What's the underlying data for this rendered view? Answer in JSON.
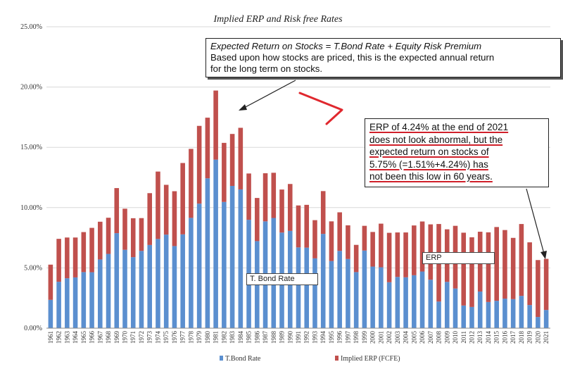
{
  "chart_data": {
    "type": "bar",
    "stacked": true,
    "title": "Implied ERP and Risk free Rates",
    "xlabel": "",
    "ylabel": "",
    "ylim": [
      0,
      25
    ],
    "y_ticks": [
      "0.00%",
      "5.00%",
      "10.00%",
      "15.00%",
      "20.00%",
      "25.00%"
    ],
    "grid": true,
    "legend_position": "bottom",
    "categories": [
      "1961",
      "1962",
      "1963",
      "1964",
      "1965",
      "1966",
      "1967",
      "1968",
      "1969",
      "1970",
      "1971",
      "1972",
      "1973",
      "1974",
      "1975",
      "1976",
      "1977",
      "1978",
      "1979",
      "1980",
      "1981",
      "1982",
      "1983",
      "1984",
      "1985",
      "1986",
      "1987",
      "1988",
      "1989",
      "1990",
      "1991",
      "1992",
      "1993",
      "1994",
      "1995",
      "1996",
      "1997",
      "1998",
      "1999",
      "2000",
      "2001",
      "2002",
      "2003",
      "2004",
      "2005",
      "2006",
      "2007",
      "2008",
      "2009",
      "2010",
      "2011",
      "2012",
      "2013",
      "2014",
      "2015",
      "2016",
      "2017",
      "2018",
      "2019",
      "2020",
      "2021"
    ],
    "series": [
      {
        "name": "T.Bond Rate",
        "color": "#5b8fcf",
        "values": [
          2.35,
          3.85,
          4.14,
          4.21,
          4.65,
          4.64,
          5.7,
          6.16,
          7.88,
          6.5,
          5.89,
          6.41,
          6.9,
          7.4,
          7.76,
          6.81,
          7.78,
          9.15,
          10.33,
          12.43,
          13.98,
          10.47,
          11.8,
          11.51,
          8.99,
          7.22,
          8.86,
          9.14,
          7.93,
          8.07,
          6.7,
          6.68,
          5.79,
          7.82,
          5.57,
          6.41,
          5.74,
          4.65,
          6.44,
          5.11,
          5.05,
          3.81,
          4.25,
          4.22,
          4.39,
          4.7,
          4.02,
          2.21,
          3.84,
          3.29,
          1.88,
          1.76,
          3.04,
          2.17,
          2.27,
          2.45,
          2.41,
          2.68,
          1.92,
          0.93,
          1.51
        ]
      },
      {
        "name": "Implied ERP (FCFE)",
        "color": "#c0504d",
        "values": [
          2.92,
          3.56,
          3.38,
          3.31,
          3.32,
          3.68,
          3.13,
          3.0,
          3.74,
          3.41,
          3.23,
          2.72,
          4.3,
          5.59,
          4.13,
          4.55,
          5.92,
          5.72,
          6.45,
          5.03,
          5.73,
          4.9,
          4.31,
          5.11,
          3.84,
          3.58,
          3.99,
          3.75,
          3.57,
          3.89,
          3.48,
          3.55,
          3.17,
          3.55,
          3.29,
          3.2,
          2.79,
          2.26,
          2.05,
          2.87,
          3.62,
          4.1,
          3.69,
          3.72,
          4.13,
          4.15,
          4.59,
          6.43,
          4.36,
          5.2,
          6.04,
          5.78,
          4.96,
          5.78,
          6.12,
          5.69,
          5.08,
          5.96,
          5.2,
          4.72,
          4.24
        ]
      }
    ]
  },
  "annotations": {
    "main": {
      "line1": "Expected Return on Stocks = T.Bond Rate + Equity Risk Premium",
      "line2": "Based upon how stocks are priced, this is the expected annual return",
      "line3": "for the long term on stocks."
    },
    "erp_note": {
      "line1": "ERP of 4.24% at the end of 2021",
      "line2": "does not look abnormal, but the",
      "line3": "expected return on stocks of",
      "line4": "5.75% (=1.51%+4.24%) has",
      "line5": "not been this low in 60 years."
    },
    "tbond_tag": "T. Bond Rate",
    "erp_tag": "ERP"
  },
  "colors": {
    "arrow_red": "#e0282e",
    "callout_border": "#222222"
  }
}
